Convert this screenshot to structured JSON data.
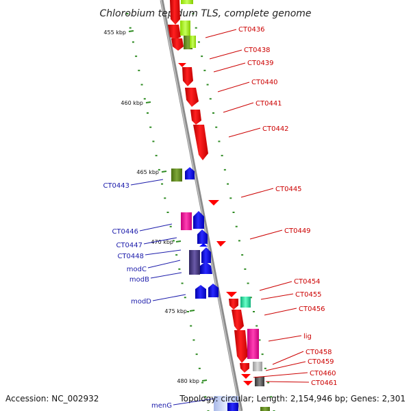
{
  "title": "Chlorobium tepidum TLS, complete genome",
  "footer": {
    "accession": "Accession: NC_002932",
    "topology": "Topology: circular; Length: 2,154,946 bp; Genes: 2,301"
  },
  "kbp_labels": [
    "455 kbp",
    "460 kbp",
    "465 kbp",
    "470 kbp",
    "475 kbp",
    "480 kbp"
  ],
  "right_genes": [
    "CT0436",
    "CT0438",
    "CT0439",
    "CT0440",
    "CT0441",
    "CT0442",
    "CT0445",
    "CT0449",
    "CT0454",
    "CT0455",
    "CT0456",
    "lig",
    "CT0458",
    "CT0459",
    "CT0460",
    "CT0461"
  ],
  "left_genes": [
    "CT0443",
    "CT0446",
    "CT0447",
    "CT0448",
    "modC",
    "modB",
    "modD",
    "menG"
  ],
  "colors": {
    "forward_gene": "#ff0000",
    "reverse_gene": "#0000ff",
    "backbone": "#8c8c8c",
    "label_red": "#cc0000",
    "label_blue": "#1a1aaa",
    "tick": "#2e8b22"
  }
}
